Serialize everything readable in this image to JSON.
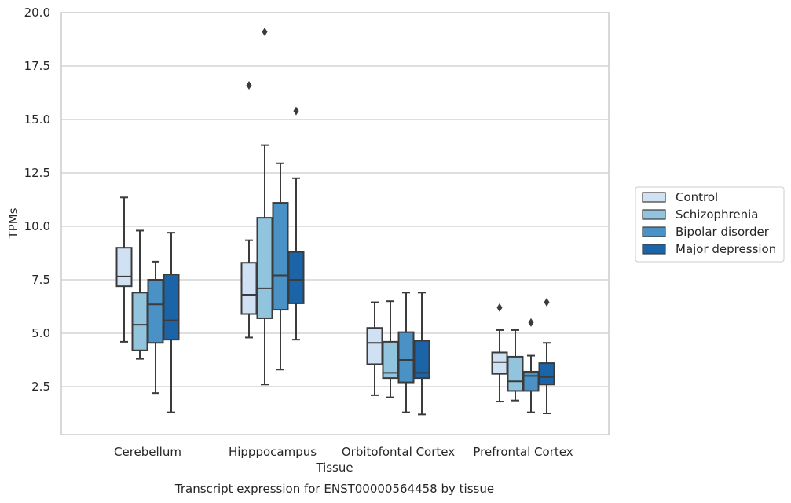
{
  "chart_data": {
    "type": "box",
    "title": "",
    "caption": "Transcript expression for ENST00000564458 by tissue",
    "xlabel": "Tissue",
    "ylabel": "TPMs",
    "ylim": [
      0.0,
      20.0
    ],
    "yticks": [
      "2.5",
      "5.0",
      "7.5",
      "10.0",
      "12.5",
      "15.0",
      "17.5",
      "20.0"
    ],
    "grid": "horizontal",
    "legend_position": "right",
    "categories": [
      "Cerebellum",
      "Hipppocampus",
      "Orbitofontal Cortex",
      "Prefrontal Cortex"
    ],
    "series": [
      {
        "name": "Control",
        "color": "#cfe1f2",
        "boxes": [
          {
            "min": 4.6,
            "q1": 7.2,
            "median": 7.65,
            "q3": 9.0,
            "max": 11.35,
            "outliers": []
          },
          {
            "min": 4.8,
            "q1": 5.9,
            "median": 6.8,
            "q3": 8.3,
            "max": 9.35,
            "outliers": [
              16.6
            ]
          },
          {
            "min": 2.1,
            "q1": 3.55,
            "median": 4.55,
            "q3": 5.25,
            "max": 6.45,
            "outliers": []
          },
          {
            "min": 1.8,
            "q1": 3.1,
            "median": 3.65,
            "q3": 4.1,
            "max": 5.15,
            "outliers": [
              6.2
            ]
          }
        ]
      },
      {
        "name": "Schizophrenia",
        "color": "#93c4de",
        "boxes": [
          {
            "min": 3.8,
            "q1": 4.2,
            "median": 5.4,
            "q3": 6.9,
            "max": 9.8,
            "outliers": []
          },
          {
            "min": 2.6,
            "q1": 5.7,
            "median": 7.1,
            "q3": 10.4,
            "max": 13.8,
            "outliers": [
              19.1
            ]
          },
          {
            "min": 2.0,
            "q1": 2.9,
            "median": 3.15,
            "q3": 4.6,
            "max": 6.5,
            "outliers": []
          },
          {
            "min": 1.85,
            "q1": 2.3,
            "median": 2.75,
            "q3": 3.9,
            "max": 5.15,
            "outliers": []
          }
        ]
      },
      {
        "name": "Bipolar disorder",
        "color": "#4a91c6",
        "boxes": [
          {
            "min": 2.2,
            "q1": 4.55,
            "median": 6.35,
            "q3": 7.5,
            "max": 8.35,
            "outliers": []
          },
          {
            "min": 3.3,
            "q1": 6.1,
            "median": 7.7,
            "q3": 11.1,
            "max": 12.95,
            "outliers": []
          },
          {
            "min": 1.3,
            "q1": 2.7,
            "median": 3.75,
            "q3": 5.05,
            "max": 6.9,
            "outliers": []
          },
          {
            "min": 1.3,
            "q1": 2.3,
            "median": 3.0,
            "q3": 3.2,
            "max": 3.95,
            "outliers": [
              5.5
            ]
          }
        ]
      },
      {
        "name": "Major depression",
        "color": "#1c64a8",
        "boxes": [
          {
            "min": 1.3,
            "q1": 4.7,
            "median": 5.6,
            "q3": 7.75,
            "max": 9.7,
            "outliers": []
          },
          {
            "min": 4.7,
            "q1": 6.4,
            "median": 7.5,
            "q3": 8.8,
            "max": 12.25,
            "outliers": [
              15.4
            ]
          },
          {
            "min": 1.2,
            "q1": 2.9,
            "median": 3.15,
            "q3": 4.65,
            "max": 6.9,
            "outliers": []
          },
          {
            "min": 1.25,
            "q1": 2.6,
            "median": 2.95,
            "q3": 3.6,
            "max": 4.55,
            "outliers": [
              6.45
            ]
          }
        ]
      }
    ]
  }
}
